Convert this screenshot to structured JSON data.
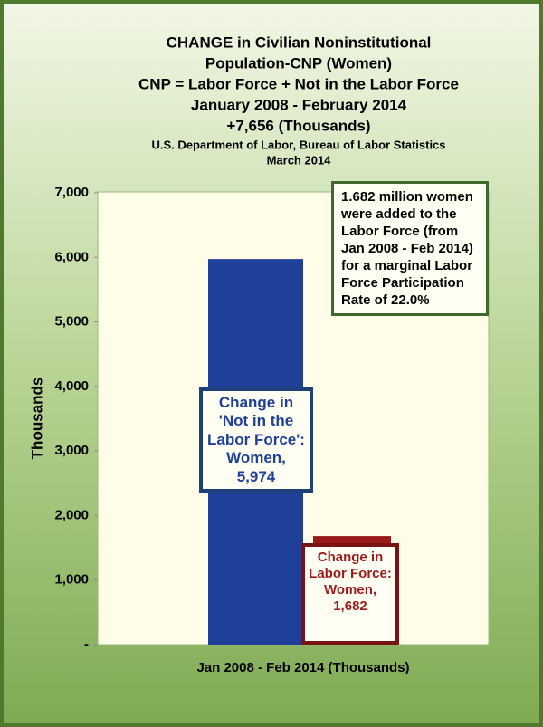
{
  "chart_data": {
    "type": "bar",
    "title": [
      "CHANGE in Civilian Noninstitutional",
      "Population-CNP (Women)",
      "CNP = Labor Force + Not in the Labor Force",
      "January 2008 - February 2014",
      "+7,656 (Thousands)"
    ],
    "subtitle": [
      "U.S. Department of Labor, Bureau of Labor Statistics",
      "March 2014"
    ],
    "ylabel": "Thousands",
    "xlabel": "Jan 2008 - Feb 2014 (Thousands)",
    "categories": [
      null
    ],
    "series": [
      {
        "name": "Change in 'Not in the Labor Force': Women,",
        "color": "#1f3f99",
        "values": [
          5974
        ],
        "value_labels": [
          "5,974"
        ]
      },
      {
        "name": "Change in Labor Force: Women,",
        "color": "#9a1b1b",
        "values": [
          1682
        ],
        "value_labels": [
          "1,682"
        ]
      }
    ],
    "ylim": [
      0,
      7000
    ],
    "yticks": [
      {
        "value": 0,
        "label": "-"
      },
      {
        "value": 1000,
        "label": "1,000"
      },
      {
        "value": 2000,
        "label": "2,000"
      },
      {
        "value": 3000,
        "label": "3,000"
      },
      {
        "value": 4000,
        "label": "4,000"
      },
      {
        "value": 5000,
        "label": "5,000"
      },
      {
        "value": 6000,
        "label": "6,000"
      },
      {
        "value": 7000,
        "label": "7,000"
      }
    ],
    "grid": false,
    "annotations": [
      "1.682 million women were added to the Labor Force (from Jan 2008 - Feb 2014) for a marginal Labor Force Participation Rate of 22.0%"
    ]
  }
}
